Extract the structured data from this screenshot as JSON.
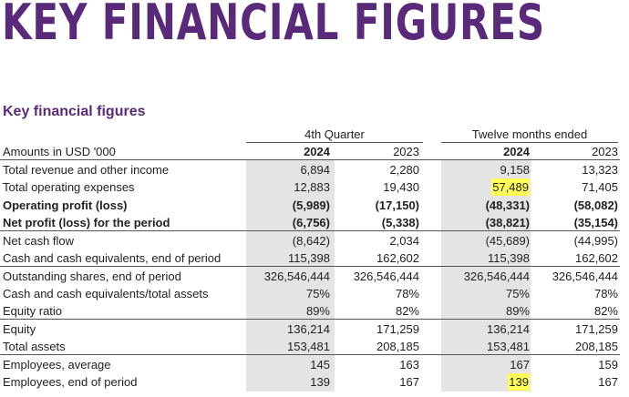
{
  "banner_title": "KEY FINANCIAL FIGURES",
  "section_title": "Key financial figures",
  "table": {
    "group_headers": [
      "4th Quarter",
      "Twelve  months ended"
    ],
    "units_label": "Amounts in USD '000",
    "columns": [
      "2024",
      "2023",
      "2024",
      "2023"
    ],
    "rows": [
      {
        "label": "Total revenue and other income",
        "values": [
          "6,894",
          "2,280",
          "9,158",
          "13,323"
        ],
        "bold": false
      },
      {
        "label": "Total operating expenses",
        "values": [
          "12,883",
          "19,430",
          "57,489",
          "71,405"
        ],
        "bold": false
      },
      {
        "label": "Operating profit (loss)",
        "values": [
          "(5,989)",
          "(17,150)",
          "(48,331)",
          "(58,082)"
        ],
        "bold": true
      },
      {
        "label": "Net profit (loss) for the period",
        "values": [
          "(6,756)",
          "(5,338)",
          "(38,821)",
          "(35,154)"
        ],
        "bold": true
      },
      {
        "label": "Net cash flow",
        "values": [
          "(8,642)",
          "2,034",
          "(45,689)",
          "(44,995)"
        ],
        "bold": false
      },
      {
        "label": "Cash and cash equivalents, end of period",
        "values": [
          "115,398",
          "162,602",
          "115,398",
          "162,602"
        ],
        "bold": false
      },
      {
        "label": "Outstanding shares, end of period",
        "values": [
          "326,546,444",
          "326,546,444",
          "326,546,444",
          "326,546,444"
        ],
        "bold": false
      },
      {
        "label": "Cash and cash equivalents/total assets",
        "values": [
          "75%",
          "78%",
          "75%",
          "78%"
        ],
        "bold": false
      },
      {
        "label": "Equity ratio",
        "values": [
          "89%",
          "82%",
          "89%",
          "82%"
        ],
        "bold": false
      },
      {
        "label": "Equity",
        "values": [
          "136,214",
          "171,259",
          "136,214",
          "171,259"
        ],
        "bold": false
      },
      {
        "label": "Total assets",
        "values": [
          "153,481",
          "208,185",
          "153,481",
          "208,185"
        ],
        "bold": false
      },
      {
        "label": "Employees, average",
        "values": [
          "145",
          "163",
          "167",
          "159"
        ],
        "bold": false
      },
      {
        "label": "Employees, end of period",
        "values": [
          "139",
          "167",
          "139",
          "167"
        ],
        "bold": false
      }
    ],
    "highlighted_cells": [
      {
        "row": 1,
        "col": 2
      },
      {
        "row": 12,
        "col": 2
      }
    ],
    "highlight_color": "#ffff55",
    "shade_color": "#e4e4e4",
    "accent_color": "#5a2a7a"
  }
}
